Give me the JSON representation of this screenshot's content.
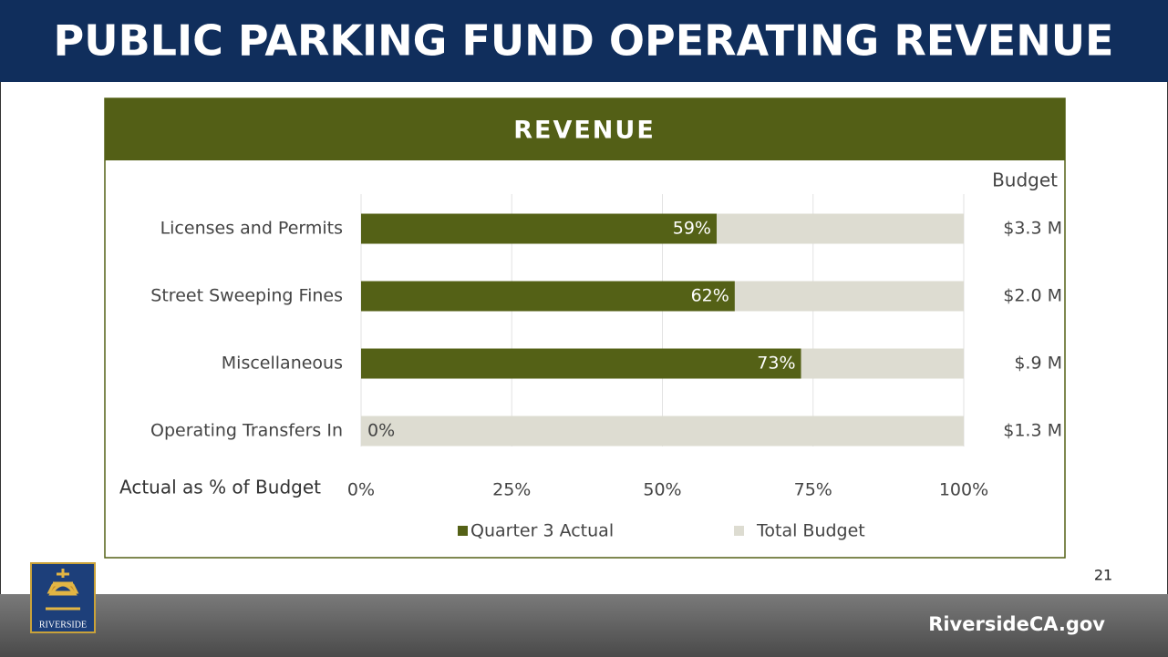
{
  "slide": {
    "title": "PUBLIC PARKING FUND OPERATING REVENUE",
    "page_number": "21",
    "footer_url": "RiversideCA.gov",
    "logo_text": "RIVERSIDE"
  },
  "chart_data": {
    "type": "bar",
    "orientation": "horizontal",
    "title": "REVENUE",
    "categories": [
      "Licenses and Permits",
      "Street Sweeping Fines",
      "Miscellaneous",
      "Operating Transfers In"
    ],
    "series": [
      {
        "name": "Quarter 3 Actual",
        "color": "#546116",
        "values": [
          59,
          62,
          73,
          0
        ],
        "value_labels": [
          "59%",
          "62%",
          "73%",
          "0%"
        ]
      },
      {
        "name": "Total Budget",
        "color": "#dddcd1",
        "values": [
          100,
          100,
          100,
          100
        ]
      }
    ],
    "budget_header": "Budget",
    "budget_labels": [
      "$3.3 M",
      "$2.0 M",
      "$.9 M",
      "$1.3 M"
    ],
    "xlabel": "Actual as % of Budget",
    "xlim": [
      0,
      100
    ],
    "xticks": [
      {
        "value": 0,
        "label": "0%"
      },
      {
        "value": 25,
        "label": "25%"
      },
      {
        "value": 50,
        "label": "50%"
      },
      {
        "value": 75,
        "label": "75%"
      },
      {
        "value": 100,
        "label": "100%"
      }
    ],
    "grid": true,
    "legend": "bottom"
  }
}
